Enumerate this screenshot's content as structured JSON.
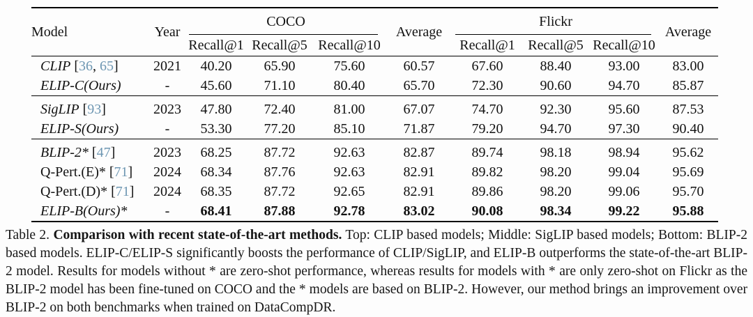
{
  "colors": {
    "citation_link": "#6d96b2",
    "text": "#111111",
    "background": "#fdfdfd",
    "rule": "#000000"
  },
  "table": {
    "header": {
      "model": "Model",
      "year": "Year",
      "coco_group": "COCO",
      "flickr_group": "Flickr",
      "coco_average": "Average",
      "flickr_average": "Average",
      "coco_subcols": [
        "Recall@1",
        "Recall@5",
        "Recall@10"
      ],
      "flickr_subcols": [
        "Recall@1",
        "Recall@5",
        "Recall@10"
      ]
    },
    "groups": [
      {
        "rows": [
          {
            "model": {
              "name": "CLIP",
              "italic": true,
              "cites": [
                "36",
                "65"
              ]
            },
            "year": "2021",
            "bold": false,
            "values": [
              "40.20",
              "65.90",
              "75.60",
              "60.57",
              "67.60",
              "88.40",
              "93.00",
              "83.00"
            ]
          },
          {
            "model": {
              "name": "ELIP-C(Ours)",
              "italic": true,
              "cites": []
            },
            "year": "-",
            "bold": false,
            "values": [
              "45.60",
              "71.10",
              "80.40",
              "65.70",
              "72.30",
              "90.60",
              "94.70",
              "85.87"
            ]
          }
        ]
      },
      {
        "rows": [
          {
            "model": {
              "name": "SigLIP",
              "italic": true,
              "cites": [
                "93"
              ]
            },
            "year": "2023",
            "bold": false,
            "values": [
              "47.80",
              "72.40",
              "81.00",
              "67.07",
              "74.70",
              "92.30",
              "95.60",
              "87.53"
            ]
          },
          {
            "model": {
              "name": "ELIP-S(Ours)",
              "italic": true,
              "cites": []
            },
            "year": "-",
            "bold": false,
            "values": [
              "53.30",
              "77.20",
              "85.10",
              "71.87",
              "79.20",
              "94.70",
              "97.30",
              "90.40"
            ]
          }
        ]
      },
      {
        "rows": [
          {
            "model": {
              "name": "BLIP-2*",
              "italic": true,
              "cites": [
                "47"
              ]
            },
            "year": "2023",
            "bold": false,
            "values": [
              "68.25",
              "87.72",
              "92.63",
              "82.87",
              "89.74",
              "98.18",
              "98.94",
              "95.62"
            ]
          },
          {
            "model": {
              "name": "Q-Pert.(E)*",
              "italic": false,
              "cites": [
                "71"
              ]
            },
            "year": "2024",
            "bold": false,
            "values": [
              "68.34",
              "87.76",
              "92.63",
              "82.91",
              "89.82",
              "98.20",
              "99.04",
              "95.69"
            ]
          },
          {
            "model": {
              "name": "Q-Pert.(D)*",
              "italic": false,
              "cites": [
                "71"
              ]
            },
            "year": "2024",
            "bold": false,
            "values": [
              "68.35",
              "87.72",
              "92.65",
              "82.91",
              "89.86",
              "98.20",
              "99.06",
              "95.70"
            ]
          },
          {
            "model": {
              "name": "ELIP-B(Ours)*",
              "italic": true,
              "cites": []
            },
            "year": "-",
            "bold": true,
            "values": [
              "68.41",
              "87.88",
              "92.78",
              "83.02",
              "90.08",
              "98.34",
              "99.22",
              "95.88"
            ]
          }
        ]
      }
    ]
  },
  "caption": {
    "label": "Table 2.",
    "title": "Comparison with recent state-of-the-art methods.",
    "body": "Top: CLIP based models; Middle: SigLIP based models; Bottom: BLIP-2 based models. ELIP-C/ELIP-S significantly boosts the performance of CLIP/SigLIP, and ELIP-B outperforms the state-of-the-art BLIP-2 model. Results for models without * are zero-shot performance, whereas results for models with * are only zero-shot on Flickr as the BLIP-2 model has been fine-tuned on COCO and the * models are based on BLIP-2. However, our method brings an improvement over BLIP-2 on both benchmarks when trained on DataCompDR."
  }
}
